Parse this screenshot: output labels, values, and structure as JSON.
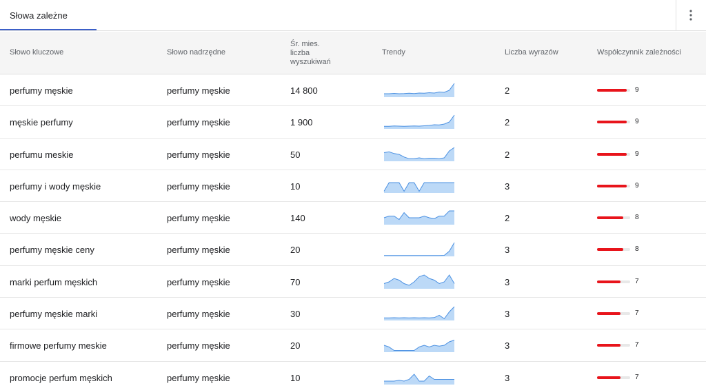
{
  "tab": {
    "label": "Słowa zależne"
  },
  "menu": {
    "icon": "more-vert-icon"
  },
  "columns": {
    "keyword": "Słowo kluczowe",
    "parent": "Słowo nadrzędne",
    "volume_lines": [
      "Śr. mies.",
      "liczba",
      "wyszukiwań"
    ],
    "trend": "Trendy",
    "words": "Liczba wyrazów",
    "coef": "Współczynnik zależności"
  },
  "colors": {
    "accent": "#3b5fc8",
    "bar_fill": "#e8141b",
    "bar_track": "#e8e8e8",
    "trend_fill": "#bcd9f7",
    "trend_line": "#4a90e2"
  },
  "coef_max": 10,
  "rows": [
    {
      "keyword": "perfumy męskie",
      "parent": "perfumy męskie",
      "volume": "14 800",
      "words": "2",
      "score": "9",
      "trend": [
        2,
        2,
        2.2,
        2,
        2.1,
        2.3,
        2.1,
        2.4,
        2.3,
        2.6,
        2.4,
        3,
        2.8,
        4,
        8
      ]
    },
    {
      "keyword": "męskie perfumy",
      "parent": "perfumy męskie",
      "volume": "1 900",
      "words": "2",
      "score": "9",
      "trend": [
        1.5,
        1.5,
        1.7,
        1.6,
        1.5,
        1.6,
        1.7,
        1.6,
        1.8,
        2,
        2.4,
        2.3,
        2.8,
        4,
        8
      ]
    },
    {
      "keyword": "perfumu meskie",
      "parent": "perfumy męskie",
      "volume": "50",
      "words": "2",
      "score": "9",
      "trend": [
        5,
        5.5,
        4.5,
        4,
        2.5,
        1.5,
        1.5,
        2,
        1.5,
        1.8,
        1.8,
        1.5,
        2,
        6,
        8
      ]
    },
    {
      "keyword": "perfumy i wody męskie",
      "parent": "perfumy męskie",
      "volume": "10",
      "words": "3",
      "score": "9",
      "trend": [
        1,
        6,
        6,
        6,
        1,
        6,
        6,
        1,
        6,
        6,
        6,
        6,
        6,
        6,
        6
      ]
    },
    {
      "keyword": "wody męskie",
      "parent": "perfumy męskie",
      "volume": "140",
      "words": "2",
      "score": "8",
      "trend": [
        4,
        5,
        5,
        3,
        7,
        4,
        4,
        4,
        5,
        4,
        3.5,
        5,
        5,
        8,
        8
      ]
    },
    {
      "keyword": "perfumy męskie ceny",
      "parent": "perfumy męskie",
      "volume": "20",
      "words": "3",
      "score": "8",
      "trend": [
        0.5,
        0.5,
        0.5,
        0.5,
        0.5,
        0.5,
        0.5,
        0.5,
        0.5,
        0.5,
        0.5,
        0.5,
        0.6,
        3,
        8
      ]
    },
    {
      "keyword": "marki perfum męskich",
      "parent": "perfumy męskie",
      "volume": "70",
      "words": "3",
      "score": "7",
      "trend": [
        3,
        4,
        6,
        5,
        3,
        2,
        4,
        7,
        8,
        6,
        5,
        3,
        4,
        8,
        3
      ]
    },
    {
      "keyword": "perfumy męskie marki",
      "parent": "perfumy męskie",
      "volume": "30",
      "words": "3",
      "score": "7",
      "trend": [
        1.5,
        1.5,
        1.6,
        1.5,
        1.6,
        1.5,
        1.6,
        1.5,
        1.6,
        1.5,
        1.7,
        3,
        1,
        5,
        8
      ]
    },
    {
      "keyword": "firmowe perfumy meskie",
      "parent": "perfumy męskie",
      "volume": "20",
      "words": "3",
      "score": "7",
      "trend": [
        4,
        3,
        1,
        1,
        1,
        1,
        1,
        3,
        4,
        3,
        4,
        3.5,
        4,
        6,
        7
      ]
    },
    {
      "keyword": "promocje perfum męskich",
      "parent": "perfumy męskie",
      "volume": "10",
      "words": "3",
      "score": "7",
      "trend": [
        2,
        2,
        2,
        2.5,
        2,
        3,
        6,
        2,
        2,
        5,
        3,
        3,
        3,
        3,
        3
      ]
    }
  ]
}
